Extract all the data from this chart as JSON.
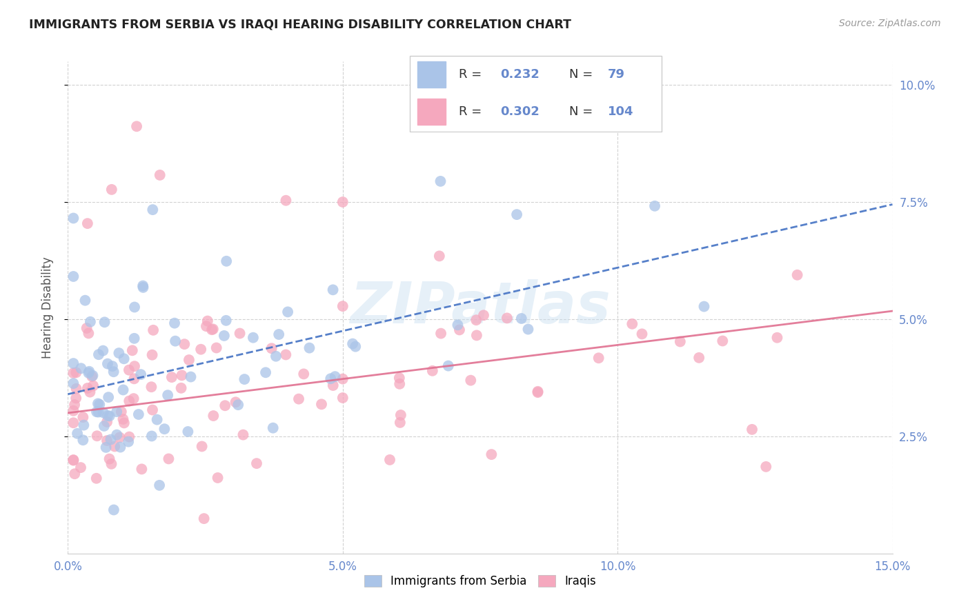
{
  "title": "IMMIGRANTS FROM SERBIA VS IRAQI HEARING DISABILITY CORRELATION CHART",
  "source": "Source: ZipAtlas.com",
  "ylabel": "Hearing Disability",
  "x_min": 0.0,
  "x_max": 0.15,
  "y_min": 0.0,
  "y_max": 0.105,
  "serbia_color": "#aac4e8",
  "iraqi_color": "#f5a8be",
  "serbia_line_color": "#4472c4",
  "iraqi_line_color": "#e07090",
  "serbia_R": 0.232,
  "serbia_N": 79,
  "iraqi_R": 0.302,
  "iraqi_N": 104,
  "legend_label_serbia": "Immigrants from Serbia",
  "legend_label_iraqi": "Iraqis",
  "watermark": "ZIPatlas",
  "tick_color": "#6688cc",
  "grid_color": "#cccccc",
  "serbia_line_intercept": 0.034,
  "serbia_line_slope": 0.27,
  "iraqi_line_intercept": 0.03,
  "iraqi_line_slope": 0.145
}
